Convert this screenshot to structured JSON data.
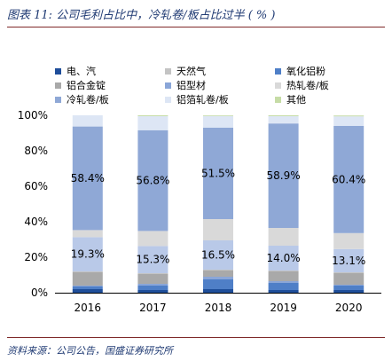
{
  "figure": {
    "title": "图表 11: 公司毛利占比中，冷轧卷/板占比过半 ( % )",
    "source": "资料来源：公司公告，国盛证券研究所"
  },
  "chart_data": {
    "type": "bar",
    "stacked": true,
    "categories": [
      "2016",
      "2017",
      "2018",
      "2019",
      "2020"
    ],
    "y_ticks": [
      "0%",
      "20%",
      "40%",
      "60%",
      "80%",
      "100%"
    ],
    "ylim": [
      0,
      100
    ],
    "legend_position": "top",
    "grid": false,
    "series": [
      {
        "name": "电、汽",
        "color": "#1f4e9a",
        "values": [
          2.0,
          1.5,
          2.0,
          1.5,
          1.5
        ]
      },
      {
        "name": "氧化铝粉",
        "color": "#4f7fc7",
        "values": [
          1.5,
          2.5,
          5.5,
          4.0,
          2.5
        ]
      },
      {
        "name": "铝型材",
        "color": "#8aa6d8",
        "values": [
          0.5,
          1.0,
          1.5,
          1.0,
          0.5
        ]
      },
      {
        "name": "铝合金锭",
        "color": "#a9a9a9",
        "values": [
          7.5,
          5.5,
          3.5,
          5.5,
          6.5
        ]
      },
      {
        "name": "天然气",
        "color": "#c4c4c4",
        "values": [
          0.5,
          0.5,
          0.5,
          0.5,
          0.5
        ]
      },
      {
        "name": "冷轧卷/板 (second segment)",
        "color": "#b9c9e8",
        "values": [
          19.3,
          15.3,
          16.5,
          14.0,
          13.1
        ]
      },
      {
        "name": "热轧卷/板",
        "color": "#d9d9d9",
        "values": [
          4.0,
          8.5,
          12.0,
          10.0,
          9.0
        ]
      },
      {
        "name": "冷轧卷/板",
        "color": "#8fa8d6",
        "values": [
          58.4,
          56.8,
          51.5,
          58.9,
          60.4
        ]
      },
      {
        "name": "铝箔轧卷/板",
        "color": "#dde6f5",
        "values": [
          6.3,
          7.9,
          6.6,
          4.1,
          5.4
        ]
      },
      {
        "name": "其他",
        "color": "#c6dca6",
        "values": [
          0.0,
          0.5,
          0.4,
          0.5,
          0.5
        ]
      }
    ],
    "data_labels": [
      {
        "series": "冷轧卷/板",
        "values": [
          "58.4%",
          "56.8%",
          "51.5%",
          "58.9%",
          "60.4%"
        ]
      },
      {
        "series": "冷轧卷/板 (second segment)",
        "values": [
          "19.3%",
          "15.3%",
          "16.5%",
          "14.0%",
          "13.1%"
        ]
      }
    ]
  },
  "legend": [
    {
      "label": "电、汽",
      "color": "#1f4e9a"
    },
    {
      "label": "天然气",
      "color": "#c4c4c4"
    },
    {
      "label": "氧化铝粉",
      "color": "#4f7fc7"
    },
    {
      "label": "铝合金锭",
      "color": "#a9a9a9"
    },
    {
      "label": "铝型材",
      "color": "#8aa6d8"
    },
    {
      "label": "热轧卷/板",
      "color": "#d9d9d9"
    },
    {
      "label": "冷轧卷/板",
      "color": "#8fa8d6"
    },
    {
      "label": "铝箔轧卷/板",
      "color": "#dde6f5"
    },
    {
      "label": "其他",
      "color": "#c6dca6"
    }
  ]
}
